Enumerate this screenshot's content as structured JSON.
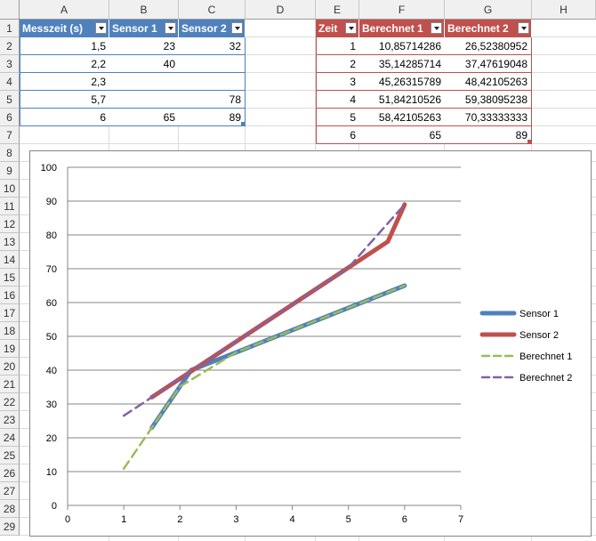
{
  "columns": [
    "A",
    "B",
    "C",
    "D",
    "E",
    "F",
    "G",
    "H"
  ],
  "rows": [
    "1",
    "2",
    "3",
    "4",
    "5",
    "6",
    "7",
    "8",
    "9",
    "10",
    "11",
    "12",
    "13",
    "14",
    "15",
    "16",
    "17",
    "18",
    "19",
    "20",
    "21",
    "22",
    "23",
    "24",
    "25",
    "26",
    "27",
    "28",
    "29"
  ],
  "table1": {
    "headers": [
      "Messzeit (s)",
      "Sensor 1",
      "Sensor 2"
    ],
    "rows": [
      [
        "1,5",
        "23",
        "32"
      ],
      [
        "2,2",
        "40",
        ""
      ],
      [
        "2,3",
        "",
        ""
      ],
      [
        "5,7",
        "",
        "78"
      ],
      [
        "6",
        "65",
        "89"
      ]
    ],
    "color": "#4f81bd"
  },
  "table2": {
    "headers": [
      "Zeit",
      "Berechnet 1",
      "Berechnet 2"
    ],
    "rows": [
      [
        "1",
        "10,85714286",
        "26,52380952"
      ],
      [
        "2",
        "35,14285714",
        "37,47619048"
      ],
      [
        "3",
        "45,26315789",
        "48,42105263"
      ],
      [
        "4",
        "51,84210526",
        "59,38095238"
      ],
      [
        "5",
        "58,42105263",
        "70,33333333"
      ],
      [
        "6",
        "65",
        "89"
      ]
    ],
    "color": "#c0504d"
  },
  "chart_data": {
    "type": "line",
    "title": "",
    "xlabel": "",
    "ylabel": "",
    "xlim": [
      0,
      7
    ],
    "ylim": [
      0,
      100
    ],
    "x_ticks": [
      "0",
      "1",
      "2",
      "3",
      "4",
      "5",
      "6",
      "7"
    ],
    "y_ticks": [
      "0",
      "10",
      "20",
      "30",
      "40",
      "50",
      "60",
      "70",
      "80",
      "90",
      "100"
    ],
    "grid": "horizontal",
    "legend_position": "right",
    "series": [
      {
        "name": "Sensor 1",
        "color": "#4f81bd",
        "dash": "solid",
        "points": [
          [
            1.5,
            23
          ],
          [
            2.2,
            40
          ],
          [
            6,
            65
          ]
        ]
      },
      {
        "name": "Sensor 2",
        "color": "#c0504d",
        "dash": "solid",
        "points": [
          [
            1.5,
            32
          ],
          [
            5.7,
            78
          ],
          [
            6,
            89
          ]
        ]
      },
      {
        "name": "Berechnet 1",
        "color": "#9bbb59",
        "dash": "dashed",
        "points": [
          [
            1,
            10.86
          ],
          [
            2,
            35.14
          ],
          [
            3,
            45.26
          ],
          [
            4,
            51.84
          ],
          [
            5,
            58.42
          ],
          [
            6,
            65
          ]
        ]
      },
      {
        "name": "Berechnet 2",
        "color": "#8064a2",
        "dash": "dashed",
        "points": [
          [
            1,
            26.52
          ],
          [
            2,
            37.48
          ],
          [
            3,
            48.42
          ],
          [
            4,
            59.38
          ],
          [
            5,
            70.33
          ],
          [
            6,
            89
          ]
        ]
      }
    ]
  }
}
